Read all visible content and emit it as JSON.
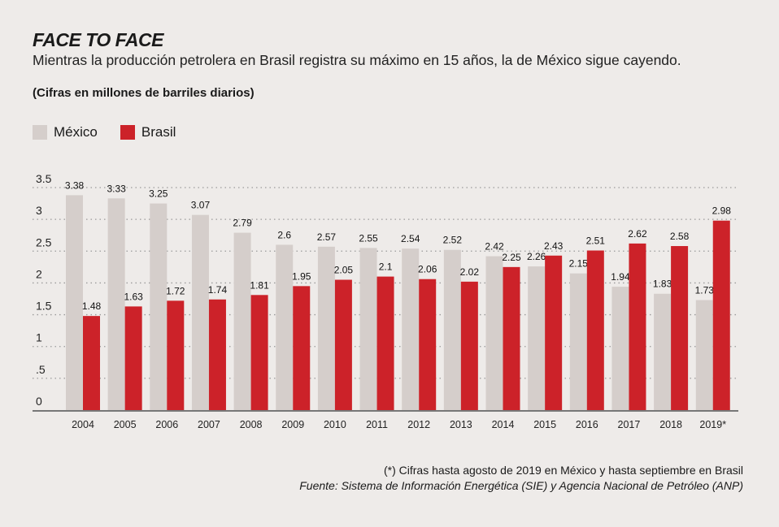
{
  "header": {
    "title": "FACE TO FACE",
    "subtitle": "Mientras la producción petrolera en Brasil registra su máximo en 15 años, la de México sigue cayendo.",
    "units": "(Cifras en millones de barriles diarios)"
  },
  "footer": {
    "note": "(*) Cifras hasta agosto de 2019 en México y hasta septiembre en Brasil",
    "source": "Fuente: Sistema de Información Energética (SIE) y Agencia Nacional de Petróleo (ANP)"
  },
  "chart_data": {
    "type": "bar",
    "categories": [
      "2004",
      "2005",
      "2006",
      "2007",
      "2008",
      "2009",
      "2010",
      "2011",
      "2012",
      "2013",
      "2014",
      "2015",
      "2016",
      "2017",
      "2018",
      "2019*"
    ],
    "series": [
      {
        "name": "México",
        "color": "#d5cecb",
        "values": [
          3.38,
          3.33,
          3.25,
          3.07,
          2.79,
          2.6,
          2.57,
          2.55,
          2.54,
          2.52,
          2.42,
          2.26,
          2.15,
          1.94,
          1.83,
          1.73
        ]
      },
      {
        "name": "Brasil",
        "color": "#cc2229",
        "values": [
          1.48,
          1.63,
          1.72,
          1.74,
          1.81,
          1.95,
          2.05,
          2.1,
          2.06,
          2.02,
          2.25,
          2.43,
          2.51,
          2.62,
          2.58,
          2.98
        ]
      }
    ],
    "yticks": [
      "0",
      ".5",
      "1",
      "1.5",
      "2",
      "2.5",
      "3",
      "3.5"
    ],
    "ylim": [
      0,
      3.5
    ],
    "grid": true,
    "legend": "top-left"
  }
}
